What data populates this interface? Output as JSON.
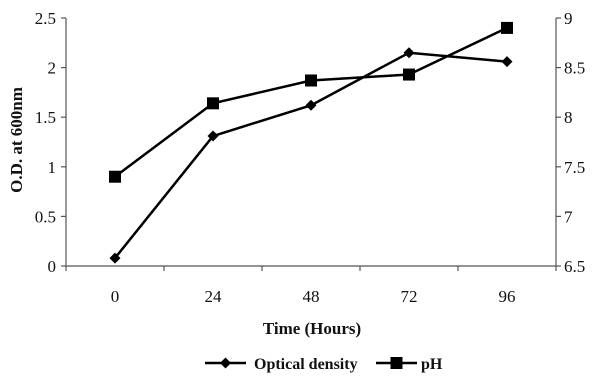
{
  "chart_data": {
    "type": "line",
    "x": [
      0,
      24,
      48,
      72,
      96
    ],
    "xlabel": "Time (Hours)",
    "ylabel_left": "O.D. at 600nm",
    "ylabel_right": "",
    "ylim_left": [
      0,
      2.5
    ],
    "ylim_right": [
      6.5,
      9
    ],
    "xticks": [
      "0",
      "24",
      "48",
      "72",
      "96"
    ],
    "yticks_left": [
      "0",
      "0.5",
      "1",
      "1.5",
      "2",
      "2.5"
    ],
    "yticks_right": [
      "6.5",
      "7",
      "7.5",
      "8",
      "8.5",
      "9"
    ],
    "grid": false,
    "legend_position": "bottom",
    "series": [
      {
        "name": "Optical density",
        "axis": "left",
        "marker": "diamond",
        "color": "#000000",
        "values": [
          0.08,
          1.31,
          1.62,
          2.15,
          2.06
        ]
      },
      {
        "name": "pH",
        "axis": "right",
        "marker": "square",
        "color": "#000000",
        "values": [
          7.4,
          8.14,
          8.37,
          8.43,
          8.9
        ]
      }
    ]
  }
}
